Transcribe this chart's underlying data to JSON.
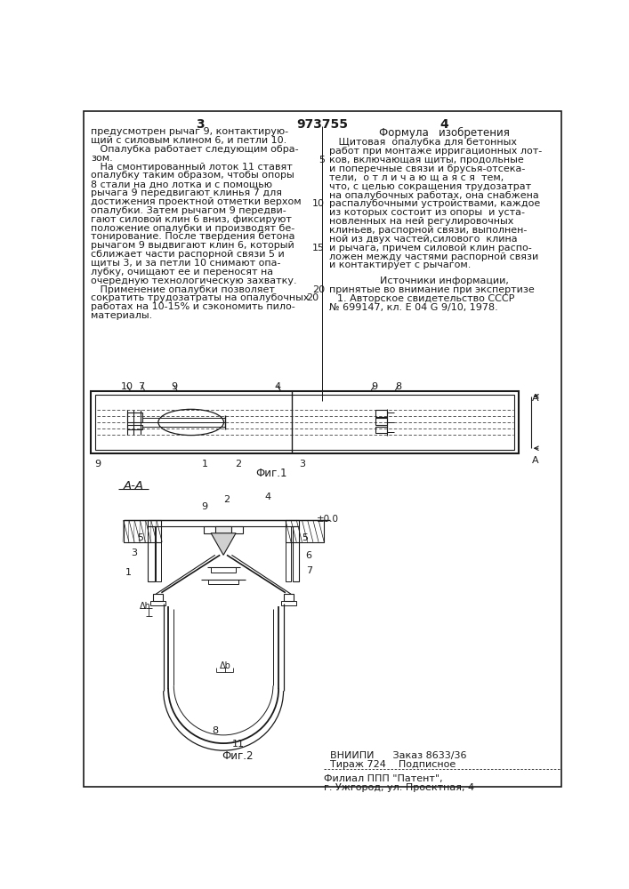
{
  "page_width": 7.07,
  "page_height": 10.0,
  "bg_color": "#ffffff",
  "text_color": "#1a1a1a",
  "line_color": "#1a1a1a",
  "header_col_left": "3",
  "header_center": "973755",
  "header_col_right": "4",
  "col1_lines": [
    "предусмотрен рычаг 9, контактирую-",
    "щий с силовым клином 6, и петли 10.",
    "   Опалубка работает следующим обра-",
    "зом.",
    "   На смонтированный лоток 11 ставят",
    "опалубку таким образом, чтобы опоры",
    "8 стали на дно лотка и с помощью",
    "рычага 9 передвигают клинья 7 для",
    "достижения проектной отметки верхом",
    "опалубки. Затем рычагом 9 передви-",
    "гают силовой клин 6 вниз, фиксируют",
    "положение опалубки и производят бе-",
    "тонирование. После твердения бетона",
    "рычагом 9 выдвигают клин 6, который",
    "сближает части распорной связи 5 и",
    "щиты 3, и за петли 10 снимают опа-",
    "лубку, очищают ее и переносят на",
    "очередную технологическую захватку.",
    "   Применение опалубки позволяет",
    "сократить трудозатраты на опалубочных",
    "работах на 10-15% и сэкономить пило-",
    "материалы."
  ],
  "col2_title": "Формула   изобретения",
  "col2_lines": [
    "   Щитовая  опалубка для бетонных",
    "работ при монтаже ирригационных лот-",
    "ков, включающая щиты, продольные",
    "и поперечные связи и брусья-отсека-",
    "тели,  о т л и ч а ю щ а я с я  тем,",
    "что, с целью сокращения трудозатрат",
    "на опалубочных работах, она снабжена",
    "распалубочными устройствами, каждое",
    "из которых состоит из опоры  и уста-",
    "новленных на ней регулировочных",
    "клиньев, распорной связи, выполнен-",
    "ной из двух частей,силового  клина",
    "и рычага, причем силовой клин распо-",
    "ложен между частями распорной связи",
    "и контактирует с рычагом."
  ],
  "sources_title": "Источники информации,",
  "sources_line1": "принятые во внимание при экспертизе",
  "sources_line2": "1. Авторское свидетельство СССР",
  "sources_line3": "№ 699147, кл. Е 04 G 9/10, 1978.",
  "fig1_caption": "Фиг.1",
  "fig2_caption": "Фиг.2",
  "aa_label": "А-А",
  "footer_line1": "ВНИИПИ      Заказ 8633/36",
  "footer_line2": "Тираж 724    Подписное",
  "footer_line3": "Филиал ППП \"Патент\",",
  "footer_line4": "г. Ужгород, ул. Проектная, 4"
}
